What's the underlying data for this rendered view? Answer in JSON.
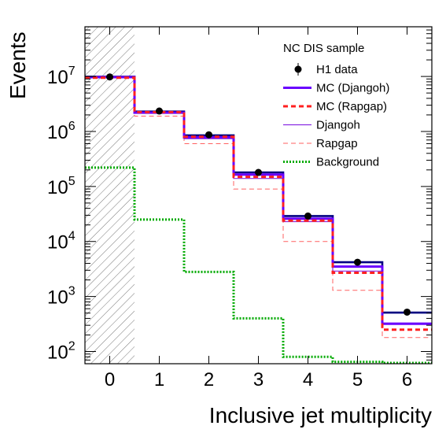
{
  "chart_data": {
    "type": "line",
    "subtype": "step-histogram",
    "xlabel": "Inclusive jet multiplicity",
    "ylabel": "Events",
    "y_scale": "log",
    "xlim": [
      -0.5,
      6.5
    ],
    "ylim": [
      60,
      80000000
    ],
    "x_ticks": [
      "0",
      "1",
      "2",
      "3",
      "4",
      "5",
      "6"
    ],
    "y_ticks": [
      {
        "value": 100,
        "base": "10",
        "exp": "2"
      },
      {
        "value": 1000,
        "base": "10",
        "exp": "3"
      },
      {
        "value": 10000,
        "base": "10",
        "exp": "4"
      },
      {
        "value": 100000,
        "base": "10",
        "exp": "5"
      },
      {
        "value": 1000000,
        "base": "10",
        "exp": "6"
      },
      {
        "value": 10000000,
        "base": "10",
        "exp": "7"
      }
    ],
    "excluded_region": {
      "x_from": -0.5,
      "x_to": 0.5,
      "pattern": "hatched"
    },
    "legend": {
      "title": "NC DIS sample",
      "placement": "top-right"
    },
    "categories": [
      0,
      1,
      2,
      3,
      4,
      5,
      6
    ],
    "series": [
      {
        "name": "H1 data",
        "style": "points",
        "color": "#000000",
        "values": [
          9800000,
          2350000,
          870000,
          180000,
          29000,
          4200,
          520
        ]
      },
      {
        "name": "MC (Djangoh)",
        "style": "thick-solid",
        "color": "#6a00ff",
        "values": [
          9700000,
          2200000,
          780000,
          165000,
          26000,
          3500,
          320
        ]
      },
      {
        "name": "MC (Rapgap)",
        "style": "thick-dashed",
        "color": "#ff2020",
        "values": [
          9500000,
          2250000,
          800000,
          150000,
          24000,
          2700,
          250
        ]
      },
      {
        "name": "Djangoh",
        "style": "thin-solid",
        "color": "#8a2be2",
        "values": [
          9600000,
          2150000,
          740000,
          140000,
          23000,
          2900,
          330
        ]
      },
      {
        "name": "Rapgap",
        "style": "thin-dashed",
        "color": "#ff6060",
        "values": [
          9400000,
          1900000,
          600000,
          90000,
          10000,
          1300,
          180
        ]
      },
      {
        "name": "Background",
        "style": "dotted",
        "color": "#00aa00",
        "values": [
          220000,
          25000,
          2800,
          400,
          80,
          65,
          62
        ]
      }
    ],
    "total_mc": {
      "color": "#000080",
      "values": [
        9900000,
        2300000,
        850000,
        180000,
        29000,
        4200,
        510
      ]
    },
    "grid": false
  }
}
